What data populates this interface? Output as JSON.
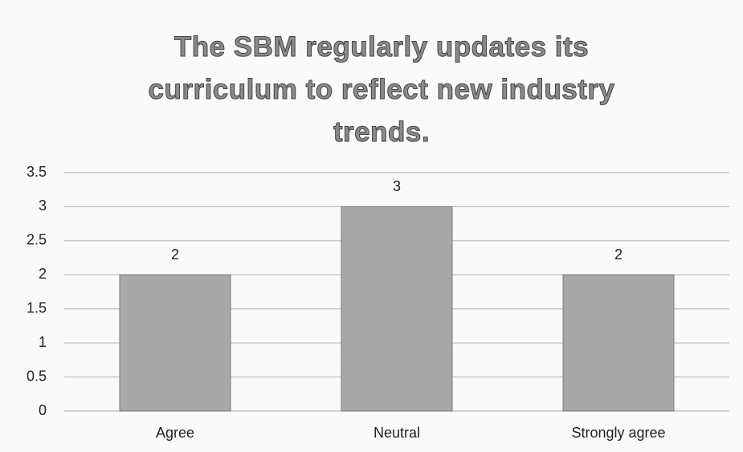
{
  "chart_data": {
    "type": "bar",
    "title": "The SBM regularly updates its curriculum to reflect new industry trends.",
    "categories": [
      "Agree",
      "Neutral",
      "Strongly agree"
    ],
    "values": [
      2,
      3,
      2
    ],
    "color": "#a8a8a8",
    "ylim": [
      0,
      3.5
    ],
    "yticks": [
      0,
      0.5,
      1,
      1.5,
      2,
      2.5,
      3,
      3.5
    ],
    "grid": true
  }
}
